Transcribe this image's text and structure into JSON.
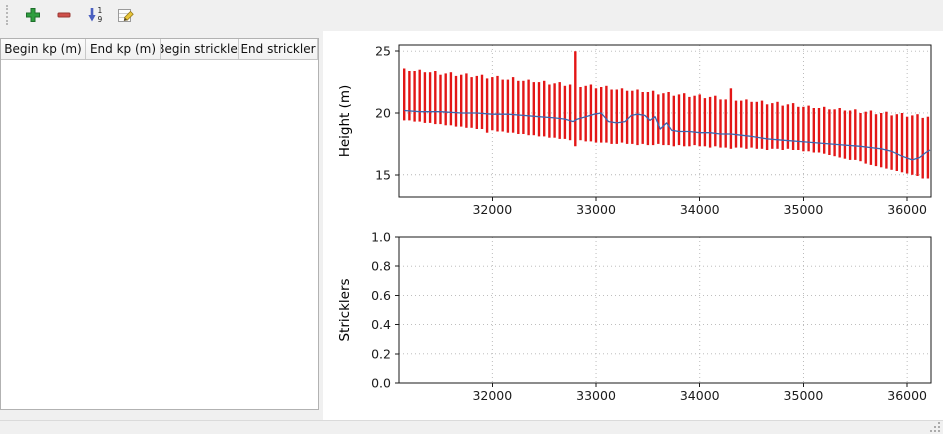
{
  "window": {
    "background": "#f0f0f0",
    "panel_background": "#ffffff"
  },
  "toolbar": {
    "buttons": [
      {
        "name": "add",
        "icon": "plus-icon",
        "color": "#2e9e3e"
      },
      {
        "name": "remove",
        "icon": "minus-icon",
        "color": "#cf4f4a"
      },
      {
        "name": "sort",
        "icon": "sort-numeric-icon",
        "color": "#4a5fc0"
      },
      {
        "name": "edit",
        "icon": "edit-icon",
        "color": "#e8c53a"
      }
    ]
  },
  "table": {
    "columns": [
      "Begin kp (m)",
      "End kp (m)",
      "Begin strickler",
      "End strickler"
    ],
    "rows": []
  },
  "chart_data": [
    {
      "type": "line",
      "title": "",
      "xlabel": "",
      "ylabel": "Height (m)",
      "xlim": [
        31100,
        36230
      ],
      "ylim": [
        13.2,
        25.5
      ],
      "xticks": [
        32000,
        33000,
        34000,
        35000,
        36000
      ],
      "xtick_labels": [
        "32000",
        "33000",
        "34000",
        "35000",
        "36000"
      ],
      "yticks": [
        15,
        20,
        25
      ],
      "ytick_labels": [
        "15",
        "20",
        "25"
      ],
      "grid": true,
      "legend": false,
      "bars": {
        "color": "#e31616",
        "x_start": 31150,
        "x_step": 50,
        "tops": [
          23.6,
          23.4,
          23.4,
          23.5,
          23.3,
          23.3,
          23.4,
          23.1,
          23.2,
          23.3,
          23.0,
          23.1,
          23.2,
          22.9,
          23.0,
          23.1,
          22.8,
          22.9,
          23.0,
          22.7,
          22.7,
          22.9,
          22.6,
          22.6,
          22.7,
          22.5,
          22.5,
          22.6,
          22.3,
          22.4,
          22.5,
          22.2,
          22.3,
          25.0,
          22.1,
          22.2,
          22.3,
          22.0,
          22.1,
          22.2,
          21.9,
          21.9,
          22.0,
          21.8,
          21.8,
          21.9,
          21.7,
          21.7,
          21.8,
          21.5,
          21.6,
          21.7,
          21.4,
          21.5,
          21.6,
          21.3,
          21.4,
          21.5,
          21.2,
          21.3,
          21.4,
          21.1,
          21.1,
          22.0,
          21.0,
          21.0,
          21.1,
          20.9,
          20.9,
          21.0,
          20.7,
          20.8,
          20.9,
          20.6,
          20.7,
          20.8,
          20.5,
          20.5,
          20.6,
          20.4,
          20.4,
          20.5,
          20.3,
          20.3,
          20.4,
          20.2,
          20.2,
          20.3,
          20.0,
          20.1,
          20.2,
          19.9,
          20.0,
          20.1,
          19.8,
          19.9,
          20.0,
          19.7,
          19.8,
          19.9,
          19.6,
          19.7
        ],
        "bottoms": [
          19.4,
          19.4,
          19.3,
          19.3,
          19.2,
          19.2,
          19.1,
          19.1,
          19.0,
          19.0,
          18.9,
          18.9,
          18.8,
          18.8,
          18.7,
          18.7,
          18.4,
          18.6,
          18.5,
          18.5,
          18.4,
          18.4,
          18.3,
          18.3,
          18.2,
          18.2,
          18.1,
          18.1,
          18.0,
          18.0,
          17.9,
          17.9,
          17.8,
          17.3,
          17.8,
          17.7,
          17.7,
          17.6,
          17.6,
          17.6,
          17.5,
          17.5,
          17.6,
          17.5,
          17.5,
          17.4,
          17.5,
          17.4,
          17.4,
          17.5,
          17.4,
          17.4,
          17.3,
          17.4,
          17.3,
          17.3,
          17.4,
          17.3,
          17.3,
          17.2,
          17.3,
          17.2,
          17.2,
          17.1,
          17.2,
          17.2,
          17.1,
          17.2,
          17.1,
          17.1,
          17.0,
          17.1,
          17.1,
          17.0,
          17.1,
          17.0,
          17.0,
          16.9,
          16.9,
          16.8,
          16.8,
          16.7,
          16.6,
          16.5,
          16.4,
          16.3,
          16.2,
          16.2,
          16.1,
          15.9,
          15.8,
          15.7,
          15.6,
          15.5,
          15.4,
          15.3,
          15.2,
          15.1,
          15.0,
          14.9,
          14.7,
          14.7
        ]
      },
      "line": {
        "color": "#3a66b0",
        "x": [
          31150,
          31300,
          31500,
          31700,
          31850,
          32000,
          32150,
          32300,
          32450,
          32600,
          32700,
          32780,
          32820,
          32900,
          32980,
          33050,
          33120,
          33200,
          33280,
          33340,
          33400,
          33470,
          33520,
          33570,
          33620,
          33680,
          33730,
          33800,
          33900,
          34000,
          34100,
          34200,
          34300,
          34400,
          34500,
          34650,
          34800,
          34950,
          35100,
          35250,
          35400,
          35550,
          35650,
          35750,
          35850,
          35950,
          36050,
          36120,
          36180,
          36220
        ],
        "y": [
          20.2,
          20.1,
          20.1,
          20.0,
          20.0,
          19.9,
          19.9,
          19.8,
          19.7,
          19.6,
          19.5,
          19.3,
          19.5,
          19.7,
          19.9,
          20.0,
          19.3,
          19.2,
          19.3,
          19.8,
          19.9,
          19.8,
          19.4,
          19.7,
          18.7,
          19.2,
          18.6,
          18.5,
          18.5,
          18.4,
          18.4,
          18.3,
          18.3,
          18.2,
          18.1,
          17.9,
          17.8,
          17.7,
          17.6,
          17.5,
          17.4,
          17.3,
          17.2,
          17.1,
          16.9,
          16.5,
          16.2,
          16.4,
          16.8,
          17.0
        ]
      }
    },
    {
      "type": "line",
      "title": "",
      "xlabel": "",
      "ylabel": "Stricklers",
      "xlim": [
        31100,
        36230
      ],
      "ylim": [
        0,
        1
      ],
      "xticks": [
        32000,
        33000,
        34000,
        35000,
        36000
      ],
      "xtick_labels": [
        "32000",
        "33000",
        "34000",
        "35000",
        "36000"
      ],
      "yticks": [
        0,
        0.2,
        0.4,
        0.6,
        0.8,
        1
      ],
      "ytick_labels": [
        "0.0",
        "0.2",
        "0.4",
        "0.6",
        "0.8",
        "1.0"
      ],
      "grid": true,
      "legend": false,
      "series": []
    }
  ]
}
